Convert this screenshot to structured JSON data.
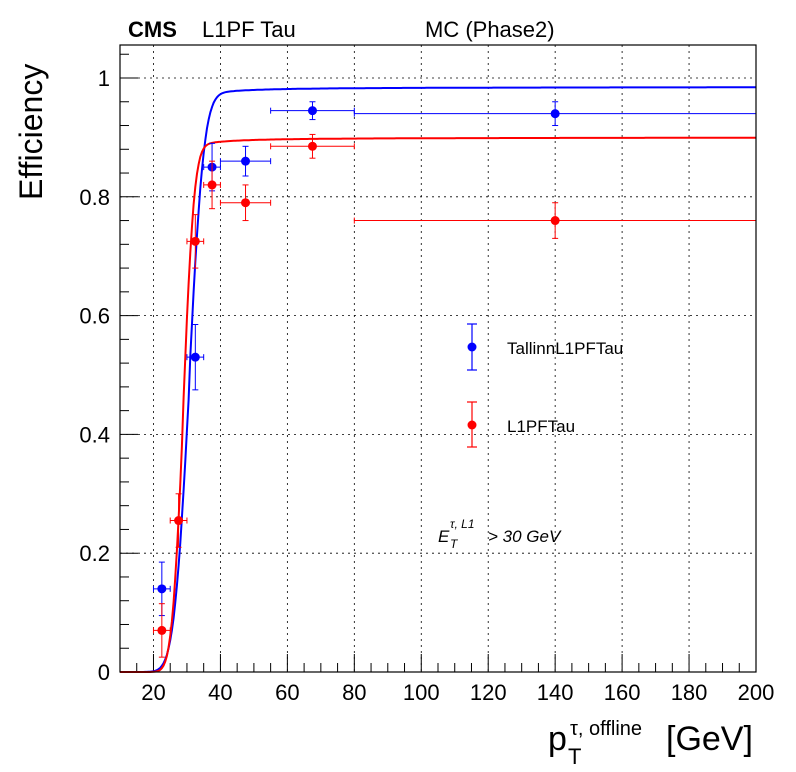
{
  "header": {
    "experiment": "CMS",
    "subtitle": "L1PF Tau",
    "sample": "MC (Phase2)"
  },
  "colors": {
    "series_blue": "#0000ff",
    "series_red": "#ff0000",
    "grid": "#000000",
    "text": "#000000"
  },
  "chart_data": {
    "type": "scatter",
    "ylabel": "Efficiency",
    "xlabel": {
      "base": "p",
      "subscript": "T",
      "superscript": "τ, offline",
      "unit": "[GeV]"
    },
    "xlim": [
      10,
      200
    ],
    "ylim": [
      0,
      1.05
    ],
    "x_ticks": [
      20,
      40,
      60,
      80,
      100,
      120,
      140,
      160,
      180,
      200
    ],
    "y_ticks": [
      0,
      0.2,
      0.4,
      0.6,
      0.8,
      1
    ],
    "y_tick_labels": [
      "0",
      "0.2",
      "0.4",
      "0.6",
      "0.8",
      "1"
    ],
    "grid": true,
    "annotation": {
      "base": "E",
      "subscript": "T",
      "superscript": "τ, L1",
      "rest": "> 30 GeV"
    },
    "legend_position": "center-right",
    "series": [
      {
        "name": "TallinnL1PFTau",
        "color": "#0000ff",
        "points": [
          {
            "x": 22.5,
            "y": 0.14,
            "xerr": 2.5,
            "yerr": 0.045
          },
          {
            "x": 32.5,
            "y": 0.53,
            "xerr": 2.5,
            "yerr": 0.055
          },
          {
            "x": 37.5,
            "y": 0.85,
            "xerr": 2.5,
            "yerr": 0.04
          },
          {
            "x": 47.5,
            "y": 0.86,
            "xerr": 7.5,
            "yerr": 0.025
          },
          {
            "x": 67.5,
            "y": 0.945,
            "xerr": 12.5,
            "yerr": 0.015
          },
          {
            "x": 140,
            "y": 0.94,
            "xerr": 60,
            "yerr": 0.02
          }
        ],
        "fit": {
          "plateau": 0.985,
          "mu": 30.5,
          "sigma": 3.5,
          "tail": 1.7
        }
      },
      {
        "name": "L1PFTau",
        "color": "#ff0000",
        "points": [
          {
            "x": 22.5,
            "y": 0.07,
            "xerr": 2.5,
            "yerr": 0.045
          },
          {
            "x": 27.5,
            "y": 0.255,
            "xerr": 2.5,
            "yerr": 0.045
          },
          {
            "x": 32.5,
            "y": 0.725,
            "xerr": 2.5,
            "yerr": 0.045
          },
          {
            "x": 37.5,
            "y": 0.82,
            "xerr": 2.5,
            "yerr": 0.04
          },
          {
            "x": 47.5,
            "y": 0.79,
            "xerr": 7.5,
            "yerr": 0.03
          },
          {
            "x": 67.5,
            "y": 0.885,
            "xerr": 12.5,
            "yerr": 0.02
          },
          {
            "x": 140,
            "y": 0.76,
            "xerr": 60,
            "yerr": 0.03
          }
        ],
        "fit": {
          "plateau": 0.9,
          "mu": 28.8,
          "sigma": 2.6,
          "tail": 1.7
        }
      }
    ]
  }
}
